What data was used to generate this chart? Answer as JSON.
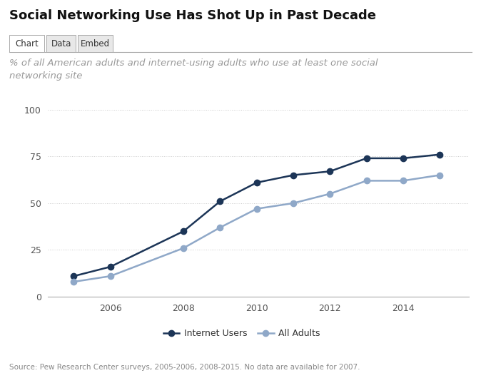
{
  "title": "Social Networking Use Has Shot Up in Past Decade",
  "subtitle": "% of all American adults and internet-using adults who use at least one social\nnetworking site",
  "source": "Source: Pew Research Center surveys, 2005-2006, 2008-2015. No data are available for 2007.",
  "internet_users": {
    "years": [
      2005,
      2006,
      2008,
      2009,
      2010,
      2011,
      2012,
      2013,
      2014,
      2015
    ],
    "values": [
      11,
      16,
      35,
      51,
      61,
      65,
      67,
      74,
      74,
      76
    ],
    "color": "#1c3557",
    "label": "Internet Users"
  },
  "all_adults": {
    "years": [
      2005,
      2006,
      2008,
      2009,
      2010,
      2011,
      2012,
      2013,
      2014,
      2015
    ],
    "values": [
      8,
      11,
      26,
      37,
      47,
      50,
      55,
      62,
      62,
      65
    ],
    "color": "#8fa8c8",
    "label": "All Adults"
  },
  "ylim": [
    0,
    100
  ],
  "yticks": [
    0,
    25,
    50,
    75,
    100
  ],
  "xticks": [
    2006,
    2008,
    2010,
    2012,
    2014
  ],
  "xlim_left": 2004.3,
  "xlim_right": 2015.8,
  "background_color": "#ffffff",
  "grid_color": "#cccccc",
  "title_fontsize": 13,
  "subtitle_fontsize": 9.5,
  "source_fontsize": 7.5,
  "axis_tick_fontsize": 9,
  "tick_color": "#555555",
  "line_color": "#888888",
  "marker_size": 6,
  "linewidth": 1.8,
  "tab_labels": [
    "Chart",
    "Data",
    "Embed"
  ],
  "tab_active": 0
}
